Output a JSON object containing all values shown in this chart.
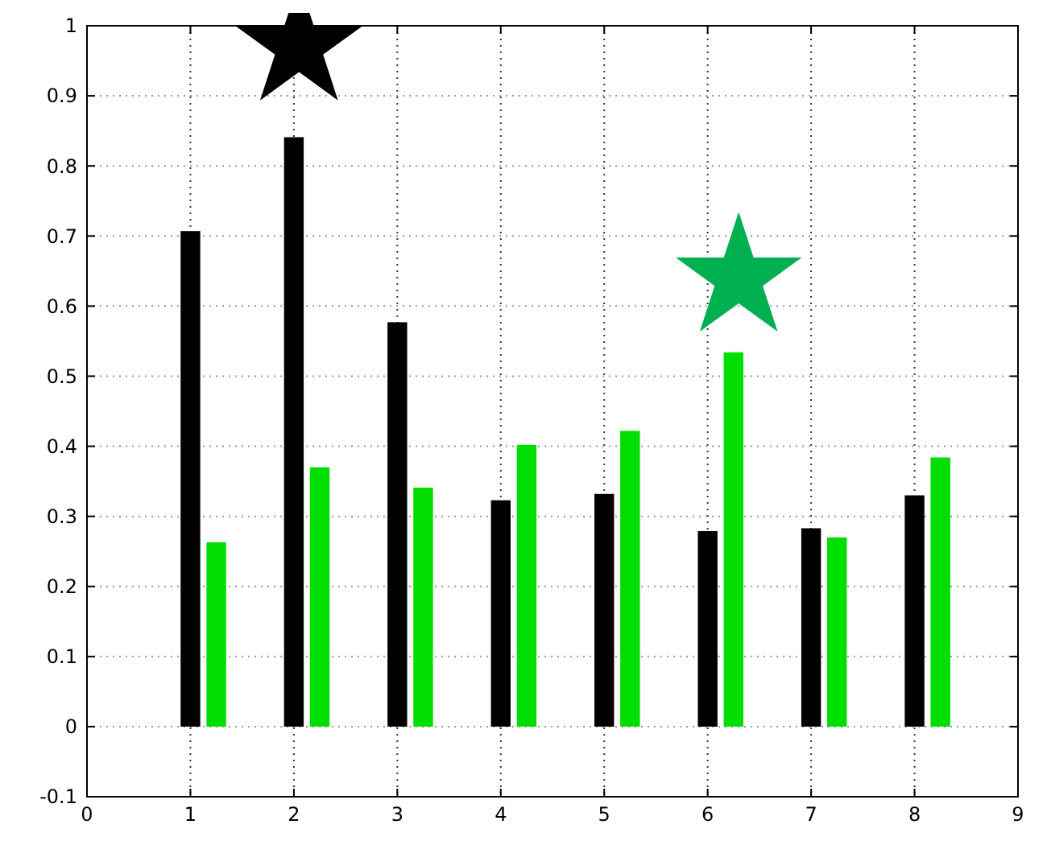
{
  "chart_data": {
    "type": "bar",
    "xlim": [
      0,
      9
    ],
    "xticks": [
      0,
      1,
      2,
      3,
      4,
      5,
      6,
      7,
      8,
      9
    ],
    "ylim": [
      -0.1,
      1
    ],
    "yticks": [
      -0.1,
      0,
      0.1,
      0.2,
      0.3,
      0.4,
      0.5,
      0.6,
      0.7,
      0.8,
      0.9,
      1
    ],
    "grid": true,
    "series": [
      {
        "color": "#000000",
        "x": [
          1,
          2,
          3,
          4,
          5,
          6,
          7,
          8
        ],
        "values": [
          0.707,
          0.841,
          0.577,
          0.323,
          0.332,
          0.279,
          0.283,
          0.33
        ]
      },
      {
        "color": "#00dd00",
        "x": [
          1.25,
          2.25,
          3.25,
          4.25,
          5.25,
          6.25,
          7.25,
          8.25
        ],
        "values": [
          0.263,
          0.37,
          0.341,
          0.402,
          0.422,
          0.534,
          0.27,
          0.384
        ]
      },
      {
        "type": "scatter",
        "marker": "star",
        "color": "#000000",
        "x": [
          2.05
        ],
        "values": [
          0.97
        ]
      },
      {
        "type": "scatter",
        "marker": "star",
        "color": "#00b050",
        "x": [
          6.3
        ],
        "values": [
          0.64
        ]
      }
    ]
  }
}
